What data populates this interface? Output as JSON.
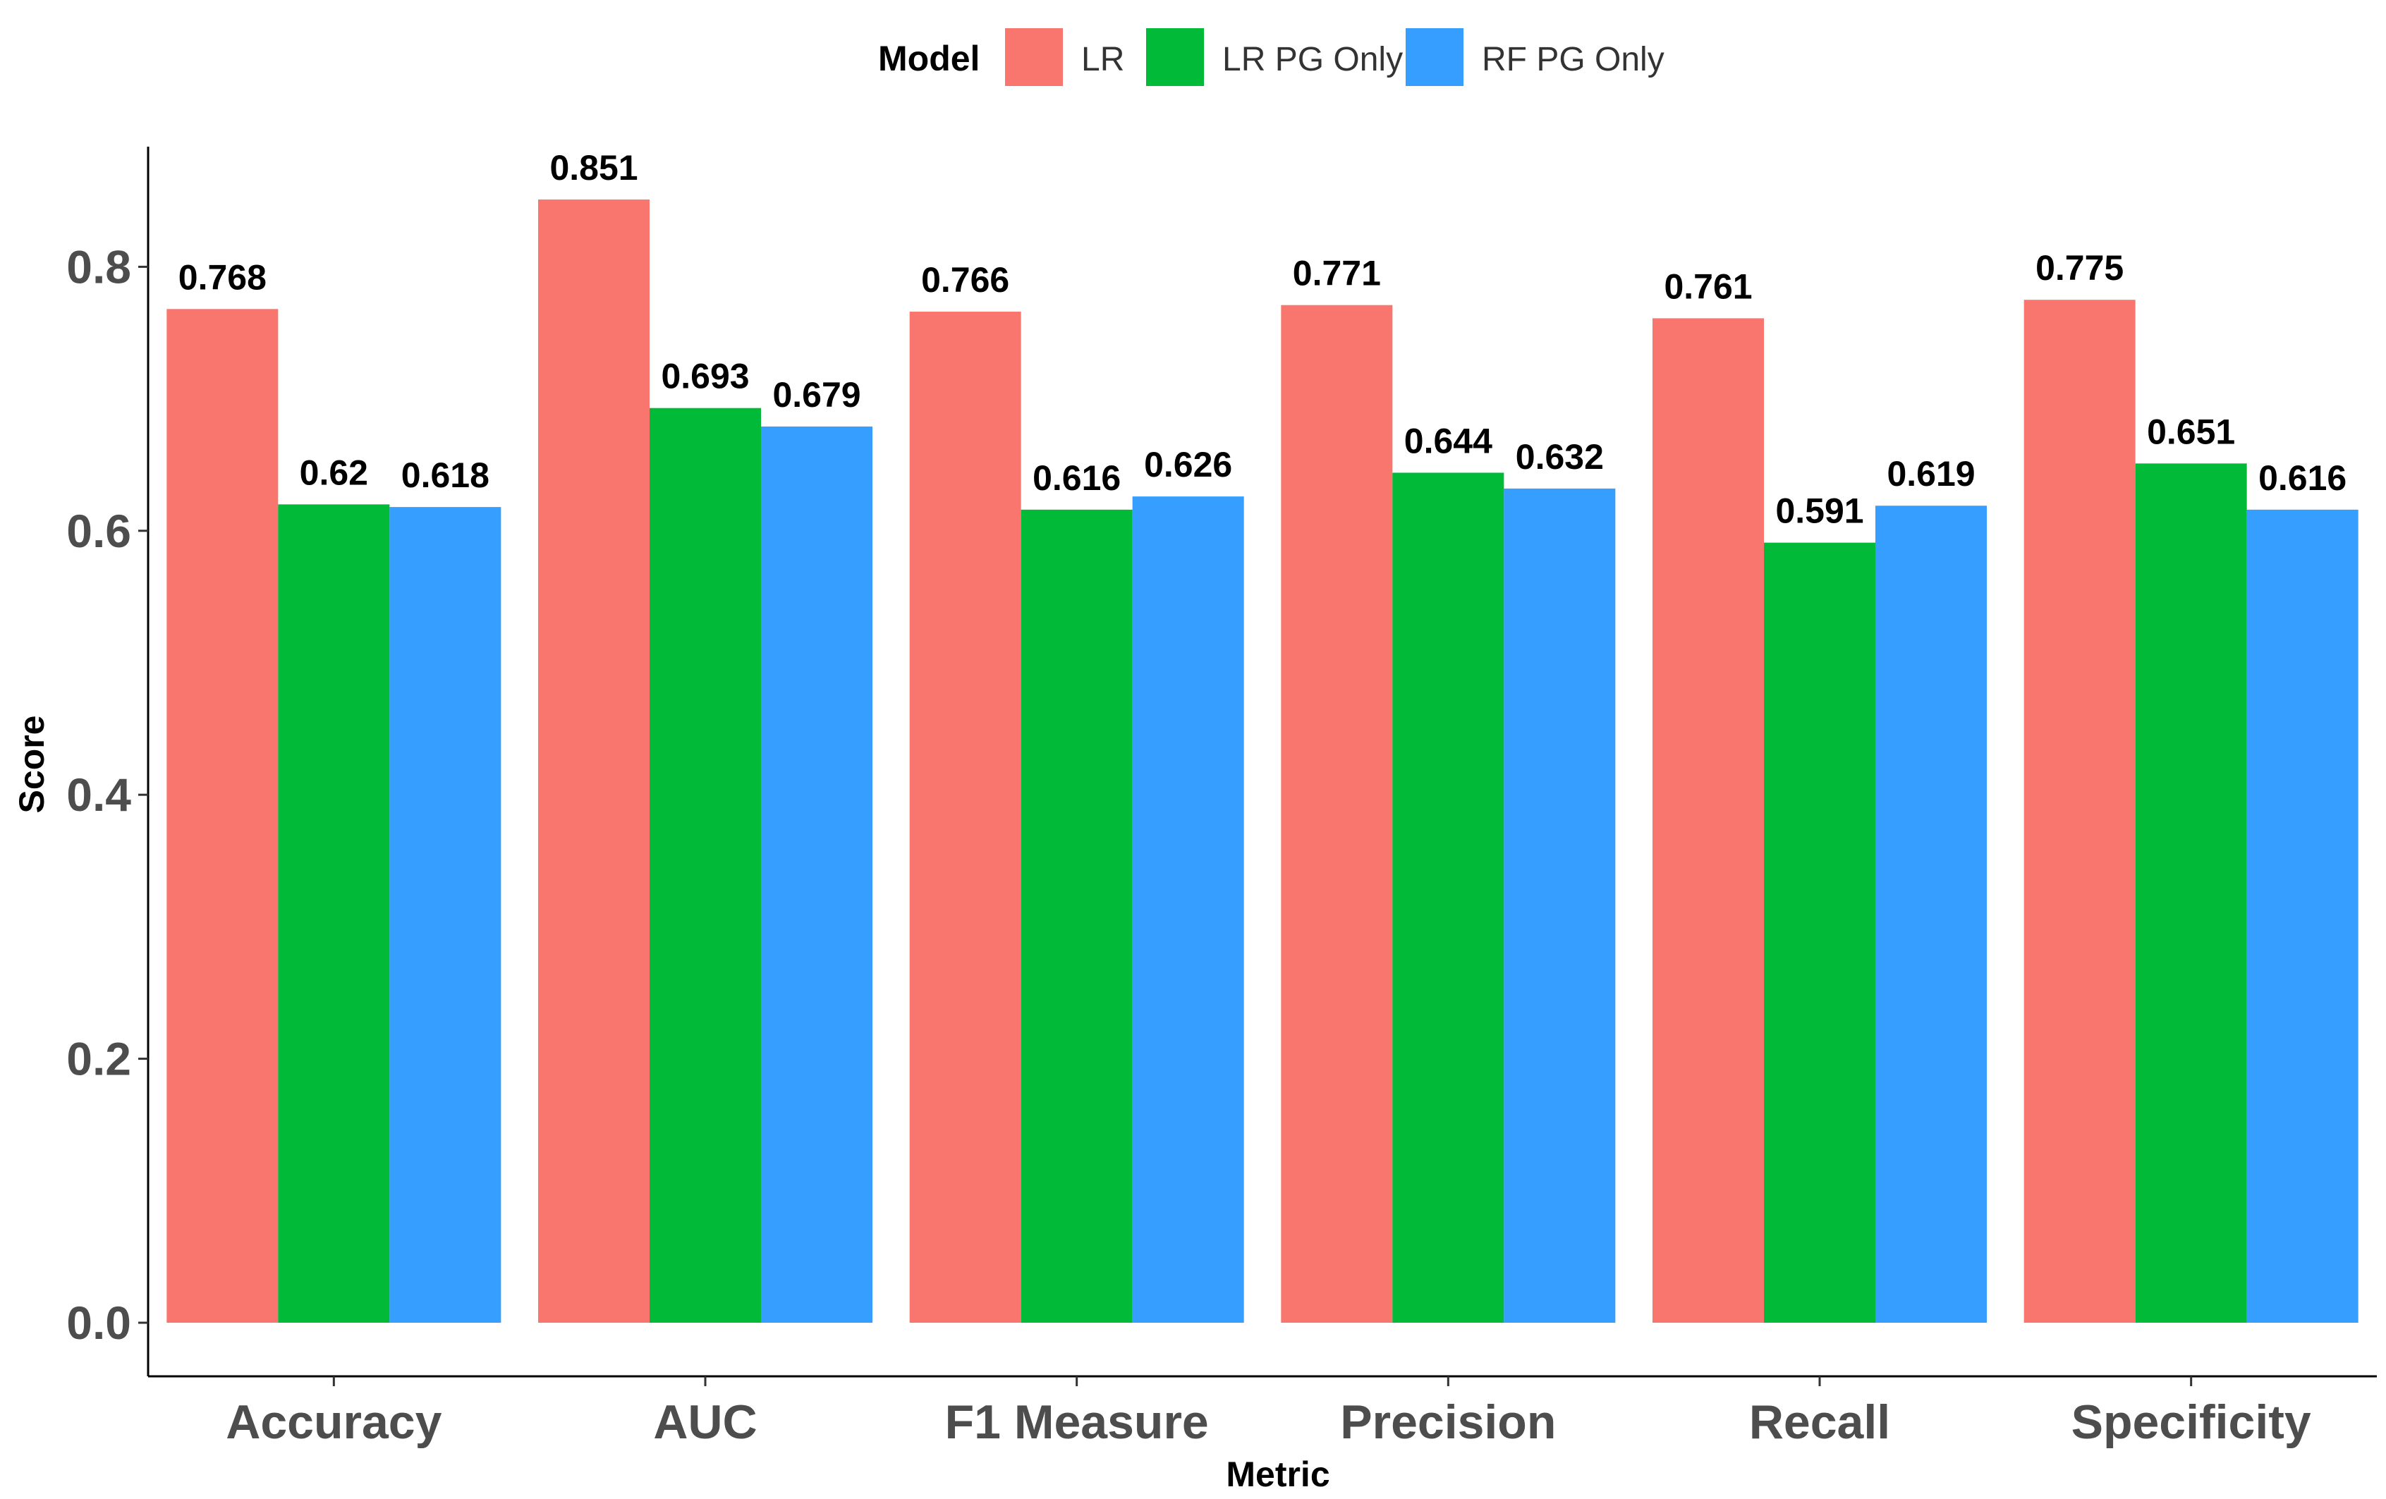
{
  "chart_data": {
    "type": "bar",
    "title": "",
    "xlabel": "Metric",
    "ylabel": "Score",
    "legend_title": "Model",
    "legend_position": "top",
    "ylim": [
      0,
      0.89
    ],
    "yticks": [
      0.0,
      0.2,
      0.4,
      0.6,
      0.8
    ],
    "ytick_labels": [
      "0.0",
      "0.2",
      "0.4",
      "0.6",
      "0.8"
    ],
    "categories": [
      "Accuracy",
      "AUC",
      "F1 Measure",
      "Precision",
      "Recall",
      "Specificity"
    ],
    "series": [
      {
        "name": "LR",
        "color": "#F8766D",
        "values": [
          0.768,
          0.851,
          0.766,
          0.771,
          0.761,
          0.775
        ],
        "labels": [
          "0.768",
          "0.851",
          "0.766",
          "0.771",
          "0.761",
          "0.775"
        ]
      },
      {
        "name": "LR PG Only",
        "color": "#00BA38",
        "values": [
          0.62,
          0.693,
          0.616,
          0.644,
          0.591,
          0.651
        ],
        "labels": [
          "0.62",
          "0.693",
          "0.616",
          "0.644",
          "0.591",
          "0.651"
        ]
      },
      {
        "name": "RF PG Only",
        "color": "#359EFF",
        "values": [
          0.618,
          0.679,
          0.626,
          0.632,
          0.619,
          0.616
        ],
        "labels": [
          "0.618",
          "0.679",
          "0.626",
          "0.632",
          "0.619",
          "0.616"
        ]
      }
    ],
    "grid": false
  }
}
